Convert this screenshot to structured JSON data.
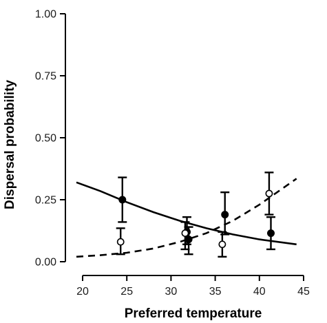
{
  "chart_data": {
    "type": "scatter",
    "title": "",
    "xlabel": "Preferred temperature",
    "ylabel": "Dispersal probability",
    "xlim": [
      19,
      45
    ],
    "ylim": [
      0,
      1.0
    ],
    "x_ticks": [
      20,
      25,
      30,
      35,
      40,
      45
    ],
    "x_tick_labels": [
      "20",
      "25",
      "30",
      "35",
      "40",
      "45"
    ],
    "y_ticks": [
      0,
      0.25,
      0.5,
      0.75,
      1.0
    ],
    "y_tick_labels": [
      "0.00",
      "0.25",
      "0.50",
      "0.75",
      "1.00"
    ],
    "grid": false,
    "legend": "none",
    "series": [
      {
        "marker": "filled-circle",
        "line_style": "solid",
        "points": [
          {
            "x": 24.5,
            "y": 0.25,
            "lower": 0.16,
            "upper": 0.34
          },
          {
            "x": 31.8,
            "y": 0.12,
            "lower": 0.07,
            "upper": 0.18
          },
          {
            "x": 32.0,
            "y": 0.09,
            "lower": 0.03,
            "upper": 0.14
          },
          {
            "x": 36.1,
            "y": 0.19,
            "lower": 0.11,
            "upper": 0.28
          },
          {
            "x": 41.3,
            "y": 0.115,
            "lower": 0.05,
            "upper": 0.18
          }
        ],
        "fit": [
          {
            "x": 19.3,
            "y": 0.32
          },
          {
            "x": 22,
            "y": 0.285
          },
          {
            "x": 25,
            "y": 0.24
          },
          {
            "x": 28,
            "y": 0.2
          },
          {
            "x": 31,
            "y": 0.165
          },
          {
            "x": 34,
            "y": 0.135
          },
          {
            "x": 37,
            "y": 0.11
          },
          {
            "x": 40,
            "y": 0.09
          },
          {
            "x": 44.2,
            "y": 0.07
          }
        ]
      },
      {
        "marker": "open-circle",
        "line_style": "dashed",
        "points": [
          {
            "x": 24.3,
            "y": 0.08,
            "lower": 0.03,
            "upper": 0.135
          },
          {
            "x": 31.6,
            "y": 0.115,
            "lower": 0.05,
            "upper": 0.16
          },
          {
            "x": 35.8,
            "y": 0.07,
            "lower": 0.02,
            "upper": 0.12
          },
          {
            "x": 41.1,
            "y": 0.275,
            "lower": 0.19,
            "upper": 0.36
          }
        ],
        "fit": [
          {
            "x": 19.3,
            "y": 0.02
          },
          {
            "x": 22,
            "y": 0.026
          },
          {
            "x": 25,
            "y": 0.036
          },
          {
            "x": 28,
            "y": 0.053
          },
          {
            "x": 31,
            "y": 0.08
          },
          {
            "x": 34,
            "y": 0.115
          },
          {
            "x": 37,
            "y": 0.165
          },
          {
            "x": 40,
            "y": 0.23
          },
          {
            "x": 42,
            "y": 0.28
          },
          {
            "x": 44.2,
            "y": 0.335
          }
        ]
      }
    ]
  }
}
